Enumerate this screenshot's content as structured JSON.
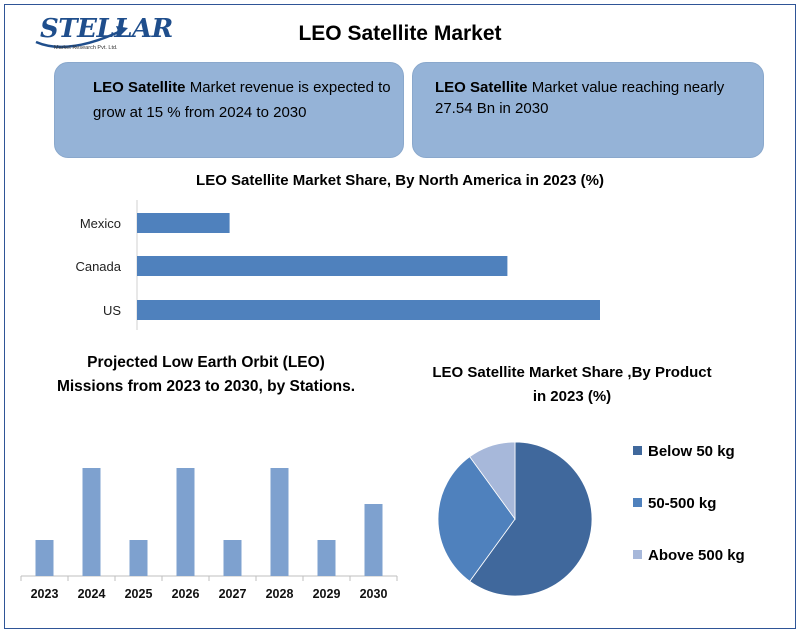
{
  "brand": {
    "name": "STELLAR",
    "tagline": "Market Research Pvt. Ltd."
  },
  "title": "LEO Satellite Market",
  "info": {
    "left": {
      "bold": "LEO Satellite",
      "text": " Market revenue is expected to grow at 15 % from 2024 to 2030"
    },
    "right": {
      "bold": "LEO Satellite",
      "text": " Market value reaching nearly 27.54 Bn in 2030"
    }
  },
  "colors": {
    "bar": "#4f81bd",
    "bar_light": "#7ea1cf",
    "pie_dark": "#40689c",
    "pie_mid": "#4f81bd",
    "pie_light": "#a7b8da",
    "box": "#95b3d7",
    "frame": "#2f5597"
  },
  "chart_data": [
    {
      "type": "bar",
      "orientation": "horizontal",
      "title": "LEO Satellite Market Share, By North America in 2023 (%)",
      "categories": [
        "Mexico",
        "Canada",
        "US"
      ],
      "values": [
        10,
        40,
        50
      ],
      "xlim": [
        0,
        55
      ],
      "grid": false,
      "axis_ticks_shown": false
    },
    {
      "type": "bar",
      "orientation": "vertical",
      "title": "Projected Low Earth Orbit (LEO) Missions from 2023 to 2030, by Stations.",
      "categories": [
        "2023",
        "2024",
        "2025",
        "2026",
        "2027",
        "2028",
        "2029",
        "2030"
      ],
      "values": [
        1,
        3,
        1,
        3,
        1,
        3,
        1,
        2
      ],
      "ylim": [
        0,
        3.2
      ],
      "grid": false,
      "axis_ticks_shown": false
    },
    {
      "type": "pie",
      "title": "LEO Satellite Market Share ,By Product in 2023 (%)",
      "labels": [
        "Below 50 kg",
        "50-500 kg",
        "Above 500 kg"
      ],
      "values": [
        60,
        30,
        10
      ],
      "legend_position": "right"
    }
  ]
}
